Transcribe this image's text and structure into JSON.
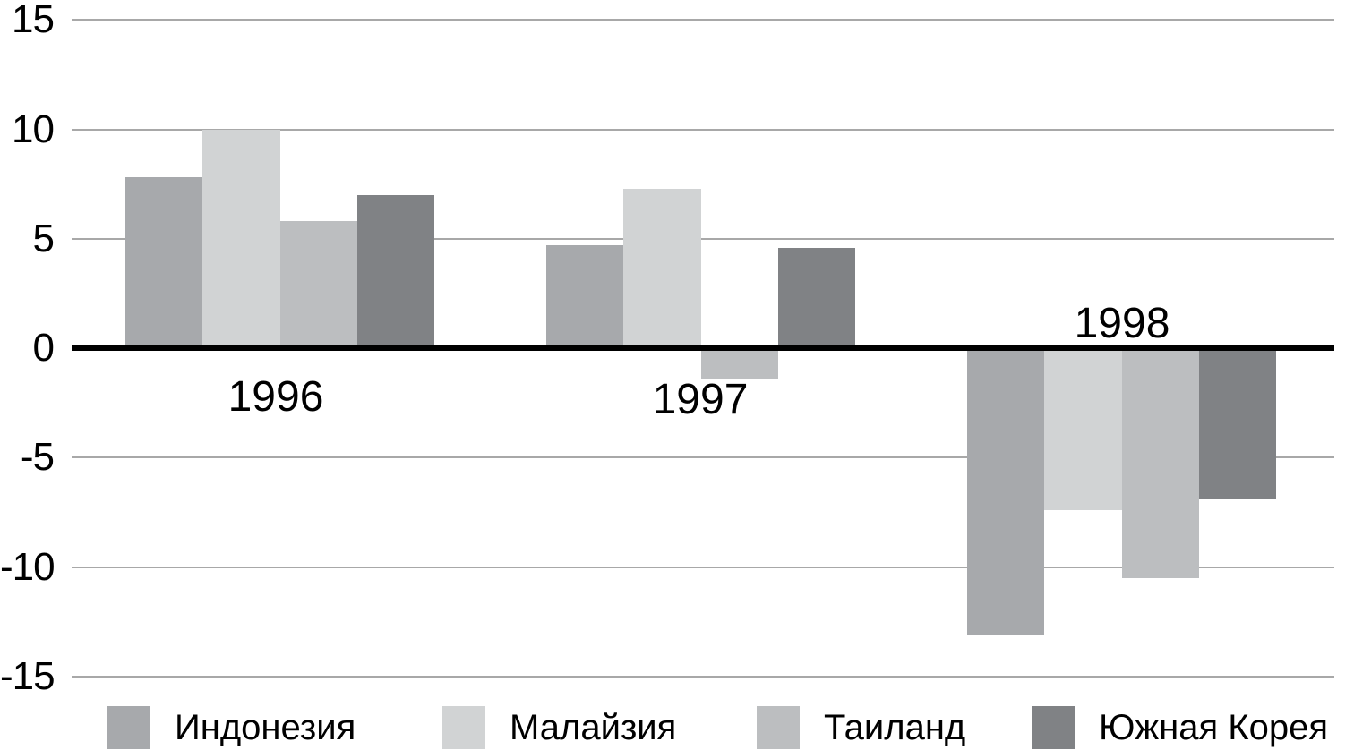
{
  "chart_data": {
    "type": "bar",
    "categories": [
      "1996",
      "1997",
      "1998"
    ],
    "series": [
      {
        "name": "Индонезия",
        "color": "#a7a9ac",
        "values": [
          7.8,
          4.7,
          -13.1
        ]
      },
      {
        "name": "Малайзия",
        "color": "#d1d3d4",
        "values": [
          10.0,
          7.3,
          -7.4
        ]
      },
      {
        "name": "Таиланд",
        "color": "#bcbec0",
        "values": [
          5.8,
          -1.4,
          -10.5
        ]
      },
      {
        "name": "Южная Корея",
        "color": "#808285",
        "values": [
          7.0,
          4.6,
          -6.9
        ]
      }
    ],
    "ylim": [
      -15,
      15
    ],
    "yticks": [
      15,
      10,
      5,
      0,
      -5,
      -10,
      -15
    ],
    "ytick_labels": [
      "15",
      "10",
      "5",
      "0",
      "-5",
      "-10",
      "-15"
    ],
    "grid": "horizontal",
    "legend_position": "bottom",
    "gridline_color": "#a8a8a8",
    "zero_axis_color": "#000000",
    "background_color": "#ffffff"
  }
}
